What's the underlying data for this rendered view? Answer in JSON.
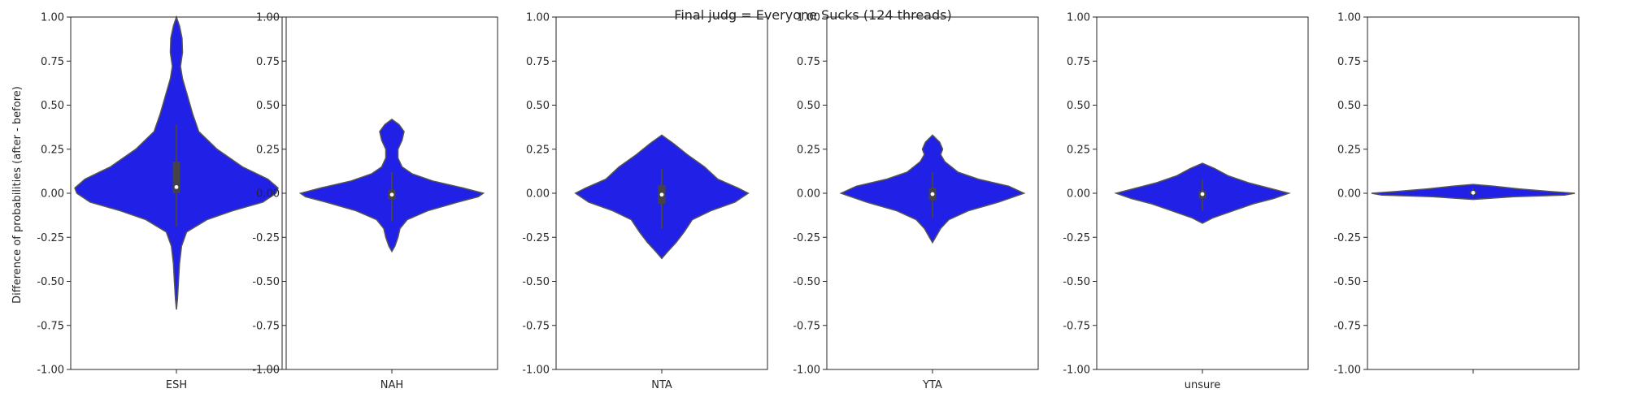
{
  "figure": {
    "suptitle": "Final judg = Everyone Sucks (124 threads)",
    "ylabel": "Difference of probabilities (after - before)"
  },
  "colors": {
    "violin_fill": "#2020e6",
    "violin_edge": "#555555",
    "box": "#444444",
    "median": "#ffffff",
    "axes": "#262626"
  },
  "chart_data": [
    {
      "type": "violin",
      "category": "ESH",
      "ylim": [
        -1,
        1
      ],
      "yticks": [
        "-1.00",
        "-0.75",
        "-0.50",
        "-0.25",
        "0.00",
        "0.25",
        "0.50",
        "0.75",
        "1.00"
      ],
      "profile": [
        [
          -0.66,
          0.0
        ],
        [
          -0.6,
          0.01
        ],
        [
          -0.5,
          0.02
        ],
        [
          -0.4,
          0.03
        ],
        [
          -0.3,
          0.05
        ],
        [
          -0.22,
          0.1
        ],
        [
          -0.15,
          0.3
        ],
        [
          -0.1,
          0.55
        ],
        [
          -0.05,
          0.85
        ],
        [
          0.0,
          0.98
        ],
        [
          0.03,
          1.0
        ],
        [
          0.08,
          0.9
        ],
        [
          0.15,
          0.65
        ],
        [
          0.25,
          0.4
        ],
        [
          0.35,
          0.22
        ],
        [
          0.45,
          0.16
        ],
        [
          0.55,
          0.11
        ],
        [
          0.65,
          0.06
        ],
        [
          0.72,
          0.04
        ],
        [
          0.8,
          0.06
        ],
        [
          0.88,
          0.055
        ],
        [
          0.95,
          0.03
        ],
        [
          1.0,
          0.0
        ]
      ],
      "box": {
        "q1": 0.0,
        "median": 0.035,
        "q3": 0.18,
        "whisker_low": -0.19,
        "whisker_high": 0.39
      }
    },
    {
      "type": "violin",
      "category": "NAH",
      "ylim": [
        -1,
        1
      ],
      "yticks": [
        "-1.00",
        "-0.75",
        "-0.50",
        "-0.25",
        "0.00",
        "0.25",
        "0.50",
        "0.75",
        "1.00"
      ],
      "profile": [
        [
          -0.33,
          0.0
        ],
        [
          -0.3,
          0.03
        ],
        [
          -0.25,
          0.06
        ],
        [
          -0.2,
          0.08
        ],
        [
          -0.15,
          0.15
        ],
        [
          -0.1,
          0.35
        ],
        [
          -0.05,
          0.65
        ],
        [
          -0.02,
          0.85
        ],
        [
          0.0,
          0.9
        ],
        [
          0.03,
          0.7
        ],
        [
          0.07,
          0.4
        ],
        [
          0.11,
          0.2
        ],
        [
          0.15,
          0.1
        ],
        [
          0.2,
          0.06
        ],
        [
          0.25,
          0.06
        ],
        [
          0.3,
          0.1
        ],
        [
          0.35,
          0.12
        ],
        [
          0.39,
          0.07
        ],
        [
          0.42,
          0.0
        ]
      ],
      "box": {
        "q1": -0.035,
        "median": -0.008,
        "q3": 0.02,
        "whisker_low": -0.16,
        "whisker_high": 0.12
      }
    },
    {
      "type": "violin",
      "category": "NTA",
      "ylim": [
        -1,
        1
      ],
      "yticks": [
        "-1.00",
        "-0.75",
        "-0.50",
        "-0.25",
        "0.00",
        "0.25",
        "0.50",
        "0.75",
        "1.00"
      ],
      "profile": [
        [
          -0.37,
          0.0
        ],
        [
          -0.33,
          0.06
        ],
        [
          -0.28,
          0.14
        ],
        [
          -0.22,
          0.22
        ],
        [
          -0.15,
          0.3
        ],
        [
          -0.1,
          0.48
        ],
        [
          -0.05,
          0.72
        ],
        [
          0.0,
          0.85
        ],
        [
          0.03,
          0.75
        ],
        [
          0.08,
          0.55
        ],
        [
          0.15,
          0.42
        ],
        [
          0.22,
          0.25
        ],
        [
          0.28,
          0.12
        ],
        [
          0.33,
          0.0
        ]
      ],
      "box": {
        "q1": -0.06,
        "median": -0.008,
        "q3": 0.045,
        "whisker_low": -0.2,
        "whisker_high": 0.14
      }
    },
    {
      "type": "violin",
      "category": "YTA",
      "ylim": [
        -1,
        1
      ],
      "yticks": [
        "-1.00",
        "-0.75",
        "-0.50",
        "-0.25",
        "0.00",
        "0.25",
        "0.50",
        "0.75",
        "1.00"
      ],
      "profile": [
        [
          -0.28,
          0.0
        ],
        [
          -0.24,
          0.04
        ],
        [
          -0.2,
          0.08
        ],
        [
          -0.15,
          0.16
        ],
        [
          -0.1,
          0.35
        ],
        [
          -0.05,
          0.65
        ],
        [
          0.0,
          0.9
        ],
        [
          0.04,
          0.75
        ],
        [
          0.08,
          0.45
        ],
        [
          0.12,
          0.25
        ],
        [
          0.18,
          0.12
        ],
        [
          0.22,
          0.08
        ],
        [
          0.25,
          0.1
        ],
        [
          0.29,
          0.07
        ],
        [
          0.33,
          0.0
        ]
      ],
      "box": {
        "q1": -0.04,
        "median": -0.005,
        "q3": 0.03,
        "whisker_low": -0.14,
        "whisker_high": 0.12
      }
    },
    {
      "type": "violin",
      "category": "unsure",
      "ylim": [
        -1,
        1
      ],
      "yticks": [
        "-1.00",
        "-0.75",
        "-0.50",
        "-0.25",
        "0.00",
        "0.25",
        "0.50",
        "0.75",
        "1.00"
      ],
      "profile": [
        [
          -0.17,
          0.0
        ],
        [
          -0.14,
          0.1
        ],
        [
          -0.1,
          0.3
        ],
        [
          -0.06,
          0.5
        ],
        [
          -0.03,
          0.7
        ],
        [
          0.0,
          0.85
        ],
        [
          0.03,
          0.65
        ],
        [
          0.06,
          0.45
        ],
        [
          0.1,
          0.25
        ],
        [
          0.14,
          0.12
        ],
        [
          0.17,
          0.0
        ]
      ],
      "box": {
        "q1": -0.03,
        "median": -0.005,
        "q3": 0.015,
        "whisker_low": -0.1,
        "whisker_high": 0.08
      }
    },
    {
      "type": "violin",
      "category": "",
      "ylim": [
        -1,
        1
      ],
      "yticks": [
        "-1.00",
        "-0.75",
        "-0.50",
        "-0.25",
        "0.00",
        "0.25",
        "0.50",
        "0.75",
        "1.00"
      ],
      "profile": [
        [
          -0.035,
          0.0
        ],
        [
          -0.02,
          0.4
        ],
        [
          -0.01,
          0.9
        ],
        [
          0.0,
          1.0
        ],
        [
          0.01,
          0.75
        ],
        [
          0.025,
          0.45
        ],
        [
          0.04,
          0.2
        ],
        [
          0.05,
          0.0
        ]
      ],
      "box": {
        "q1": -0.005,
        "median": 0.003,
        "q3": 0.012,
        "whisker_low": -0.02,
        "whisker_high": 0.03
      }
    }
  ]
}
